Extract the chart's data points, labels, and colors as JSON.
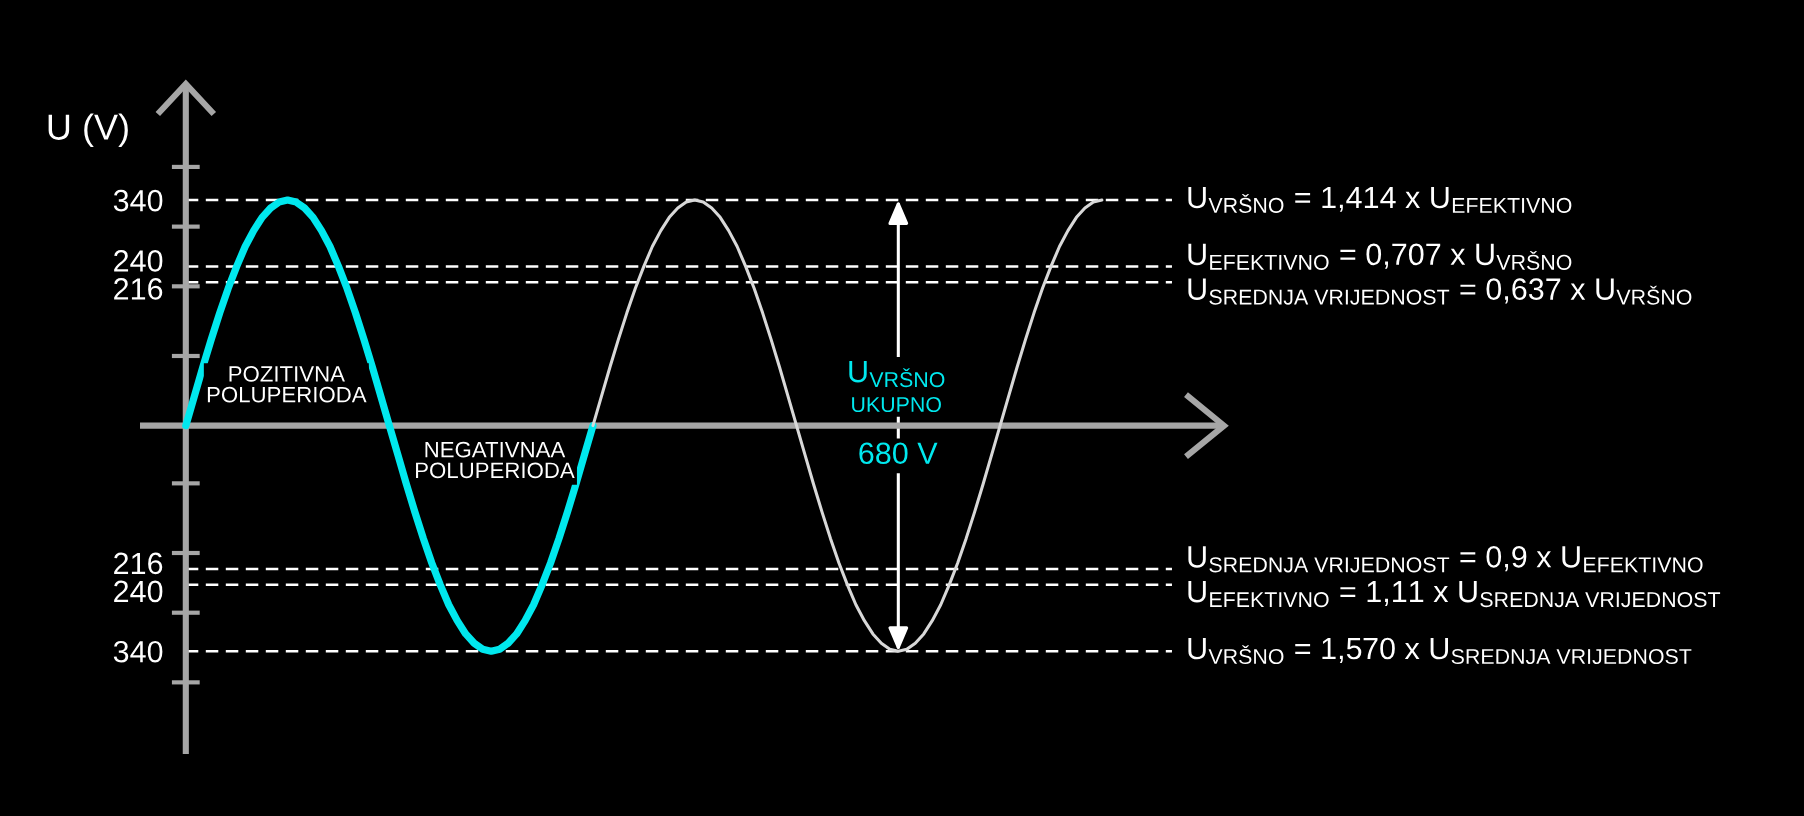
{
  "chart_data": {
    "type": "line",
    "ylabel": "U (V)",
    "categories": [
      null,
      null,
      null,
      null,
      null,
      null,
      null,
      null,
      null,
      null,
      null,
      null,
      null,
      null,
      null,
      null,
      null,
      null,
      null,
      null,
      null,
      null,
      null,
      null,
      null,
      null,
      null,
      null,
      null,
      null,
      null,
      null,
      null,
      null,
      null,
      null,
      null,
      null,
      null,
      null,
      null,
      null,
      null,
      null,
      null,
      null,
      null,
      null,
      null,
      null,
      null,
      null,
      null,
      null,
      null,
      null,
      null,
      null,
      null,
      null,
      null,
      null,
      null,
      null,
      null,
      null,
      null,
      null,
      null,
      null,
      null,
      null,
      null,
      null,
      null,
      null,
      null,
      null,
      null,
      null,
      null,
      null,
      null,
      null,
      null,
      null,
      null,
      null,
      null,
      null,
      null,
      null,
      null,
      null,
      null,
      null,
      null,
      null,
      null,
      null,
      null,
      null,
      null,
      null,
      null,
      null,
      null,
      null,
      null
    ],
    "series": [
      {
        "color": "#00e8ee",
        "values": [
          0,
          44,
          88,
          130,
          170,
          207,
          240,
          270,
          294,
          314,
          328,
          337,
          340,
          337,
          328,
          314,
          294,
          270,
          240,
          207,
          170,
          130,
          88,
          44,
          0,
          -44,
          -88,
          -130,
          -170,
          -207,
          -240,
          -270,
          -294,
          -314,
          -328,
          -337,
          -340,
          -337,
          -328,
          -314,
          -294,
          -270,
          -240,
          -207,
          -170,
          -130,
          -88,
          -44,
          0,
          null,
          null,
          null,
          null,
          null,
          null,
          null,
          null,
          null,
          null,
          null,
          null,
          null,
          null,
          null,
          null,
          null,
          null,
          null,
          null,
          null,
          null,
          null,
          null,
          null,
          null,
          null,
          null,
          null,
          null,
          null,
          null,
          null,
          null,
          null,
          null,
          null,
          null,
          null,
          null,
          null,
          null,
          null,
          null,
          null,
          null,
          null,
          null,
          null,
          null,
          null,
          null,
          null,
          null,
          null,
          null,
          null,
          null,
          null,
          null
        ]
      },
      {
        "color": "#d8d8d8",
        "values": [
          null,
          null,
          null,
          null,
          null,
          null,
          null,
          null,
          null,
          null,
          null,
          null,
          null,
          null,
          null,
          null,
          null,
          null,
          null,
          null,
          null,
          null,
          null,
          null,
          null,
          null,
          null,
          null,
          null,
          null,
          null,
          null,
          null,
          null,
          null,
          null,
          null,
          null,
          null,
          null,
          null,
          null,
          null,
          null,
          null,
          null,
          null,
          null,
          0,
          44,
          88,
          130,
          170,
          207,
          240,
          270,
          294,
          314,
          328,
          337,
          340,
          337,
          328,
          314,
          294,
          270,
          240,
          207,
          170,
          130,
          88,
          44,
          0,
          -44,
          -88,
          -130,
          -170,
          -207,
          -240,
          -270,
          -294,
          -314,
          -328,
          -337,
          -340,
          -337,
          -328,
          -314,
          -294,
          -270,
          -240,
          -207,
          -170,
          -130,
          -88,
          -44,
          0,
          44,
          88,
          130,
          170,
          207,
          240,
          270,
          294,
          314,
          328,
          337,
          340
        ]
      }
    ],
    "ylim": [
      -495,
      515
    ],
    "yticks": [
      {
        "value": -387,
        "label": null
      },
      {
        "value": -340,
        "label": "340"
      },
      {
        "value": -282,
        "label": null
      },
      {
        "value": -240,
        "label": "240"
      },
      {
        "value": -216,
        "label": "216"
      },
      {
        "value": -192,
        "label": null
      },
      {
        "value": -87,
        "label": null
      },
      {
        "value": 105,
        "label": null
      },
      {
        "value": 210,
        "label": null
      },
      216,
      240,
      {
        "value": 300,
        "label": null
      },
      340,
      {
        "value": 390,
        "label": null
      }
    ],
    "ref_lines": [
      {
        "axis": "y",
        "value": 340,
        "color": "#ffffff",
        "line_style": "dashed"
      },
      {
        "axis": "y",
        "value": 240,
        "color": "#ffffff",
        "line_style": "dashed"
      },
      {
        "axis": "y",
        "value": 216,
        "color": "#ffffff",
        "line_style": "dashed"
      },
      {
        "axis": "y",
        "value": -216,
        "color": "#ffffff",
        "line_style": "dashed"
      },
      {
        "axis": "y",
        "value": -240,
        "color": "#ffffff",
        "line_style": "dashed"
      },
      {
        "axis": "y",
        "value": -340,
        "color": "#ffffff",
        "line_style": "dashed"
      }
    ],
    "annotations": [
      "POZITIVNA\nPOLUPERIODA",
      "NEGATIVNAA\nPOLUPERIODA",
      "U$_{VRŠNO}$\nUKUPNO",
      "680 V",
      "U$_{VRŠNO}$ = 1,414 x U$_{EFEKTIVNO}$",
      "U$_{EFEKTIVNO}$ = 0,707 x U$_{VRŠNO}$",
      "U$_{SREDNJA VRIJEDNOST}$ = 0,637 x U$_{VRŠNO}$",
      "U$_{SREDNJA VRIJEDNOST}$ = 0,9 x U$_{EFEKTIVNO}$",
      "U$_{EFEKTIVNO}$ = 1,11 x U$_{SREDNJA VRIJEDNOST}$",
      "U$_{VRŠNO}$ = 1,570 x U$_{SREDNJA VRIJEDNOST}$"
    ],
    "line_style": "solid",
    "tick_labels": "y"
  }
}
